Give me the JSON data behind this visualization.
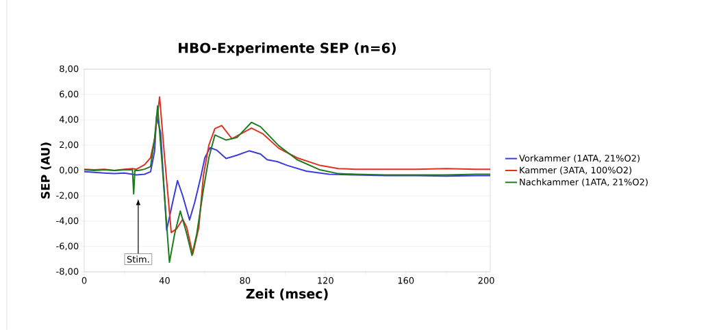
{
  "chart_data": {
    "type": "line",
    "title": "HBO-Experimente SEP (n=6)",
    "xlabel": "Zeit (msec)",
    "ylabel": "SEP (AU)",
    "xlim": [
      0,
      202
    ],
    "ylim": [
      -8,
      8
    ],
    "xticks": [
      0,
      {
        "value": 20,
        "label": null
      },
      40,
      {
        "value": 60,
        "label": null
      },
      80,
      {
        "value": 100,
        "label": null
      },
      120,
      {
        "value": 140,
        "label": null
      },
      160,
      {
        "value": 180,
        "label": null
      },
      200
    ],
    "yticks": [
      {
        "value": -8,
        "label": "-8,00"
      },
      {
        "value": -6,
        "label": "-6,00"
      },
      {
        "value": -4,
        "label": "-4,00"
      },
      {
        "value": -2,
        "label": "-2,00"
      },
      {
        "value": 0,
        "label": "0,00"
      },
      {
        "value": 2,
        "label": "2,00"
      },
      {
        "value": 4,
        "label": "4,00"
      },
      {
        "value": 6,
        "label": "6,00"
      },
      {
        "value": 8,
        "label": "8,00"
      }
    ],
    "grid": "y",
    "legend": "right",
    "marker": "none",
    "line_style": "solid",
    "annotations": [
      "Stim."
    ],
    "series": [
      {
        "name": "Vorkammer (1ATA, 21%O2)",
        "color": "#3b3bdc",
        "x": [
          0,
          5,
          10,
          15,
          20,
          24,
          26,
          30,
          33,
          35,
          36,
          38,
          41,
          44,
          46.4,
          49,
          52.4,
          55,
          58,
          60,
          62.6,
          66,
          70.6,
          76,
          82,
          87.7,
          91,
          96,
          101,
          110.5,
          121.8,
          135,
          150,
          165,
          180,
          195,
          202
        ],
        "values": [
          -0.1,
          -0.15,
          -0.2,
          -0.25,
          -0.2,
          -0.3,
          -0.35,
          -0.3,
          -0.1,
          1.5,
          4.3,
          3.0,
          -4.7,
          -2.5,
          -0.8,
          -2.0,
          -3.9,
          -2.5,
          -0.5,
          1.0,
          1.8,
          1.6,
          0.95,
          1.2,
          1.55,
          1.3,
          0.85,
          0.7,
          0.4,
          -0.05,
          -0.3,
          -0.35,
          -0.4,
          -0.4,
          -0.45,
          -0.4,
          -0.4
        ]
      },
      {
        "name": "Kammer (3ATA, 100%O2)",
        "color": "#e03020",
        "x": [
          0,
          5,
          10,
          15,
          20,
          24,
          26,
          30,
          33,
          35,
          37.5,
          40,
          43.3,
          46,
          49,
          51,
          54,
          57,
          59.3,
          62,
          65,
          68.4,
          73.5,
          78,
          83.2,
          88.8,
          96.8,
          105.9,
          117.3,
          126.4,
          135,
          150,
          165,
          180,
          195,
          202
        ],
        "values": [
          0.1,
          0.05,
          0.1,
          0,
          0.1,
          0.15,
          0.1,
          0.45,
          1.0,
          2.5,
          5.8,
          1.0,
          -4.9,
          -4.6,
          -3.85,
          -4.5,
          -6.6,
          -4.5,
          -0.4,
          2.0,
          3.3,
          3.55,
          2.5,
          2.9,
          3.35,
          2.9,
          1.75,
          1.0,
          0.4,
          0.15,
          0.1,
          0.1,
          0.1,
          0.15,
          0.1,
          0.1
        ]
      },
      {
        "name": "Nachkammer (1ATA, 21%O2)",
        "color": "#1e7a1e",
        "x": [
          0,
          5,
          10,
          15,
          20,
          24,
          24.6,
          25.2,
          27,
          30,
          33,
          35,
          36.5,
          39,
          42.4,
          45,
          47.8,
          51,
          53.6,
          56,
          59.3,
          62,
          65,
          70.6,
          76,
          83.2,
          87.7,
          96.8,
          105.9,
          117.3,
          126.4,
          135,
          150,
          165,
          180,
          195,
          202
        ],
        "values": [
          0.05,
          0,
          0.05,
          0,
          0.05,
          0.05,
          -1.85,
          0,
          0,
          0.1,
          0.3,
          2.5,
          5.1,
          0,
          -7.25,
          -5,
          -3.2,
          -5,
          -6.7,
          -5,
          -1.5,
          1.0,
          2.8,
          2.4,
          2.6,
          3.8,
          3.45,
          1.95,
          0.85,
          0.05,
          -0.25,
          -0.3,
          -0.35,
          -0.35,
          -0.35,
          -0.3,
          -0.3
        ]
      }
    ]
  }
}
